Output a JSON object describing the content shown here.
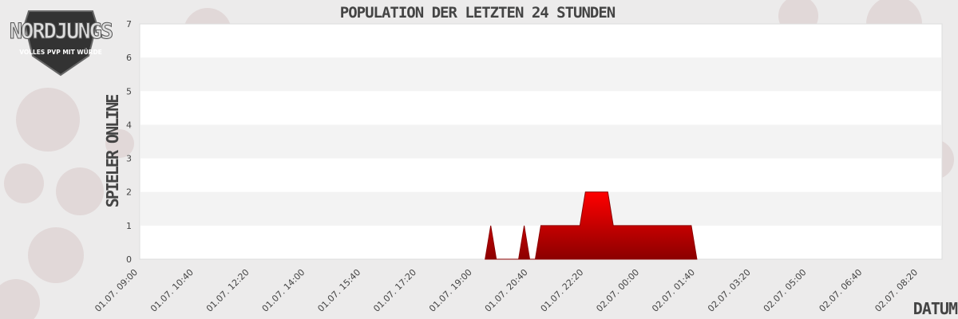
{
  "logo": {
    "text": "NORDJUNGS",
    "subtext": "VOLLES PVP MIT WÜRDE"
  },
  "chart_data": {
    "type": "area",
    "title": "POPULATION DER LETZTEN 24 STUNDEN",
    "xlabel": "DATUM",
    "ylabel": "SPIELER ONLINE",
    "xlim": [
      "01.07. 09:00",
      "02.07. 09:00"
    ],
    "ylim": [
      0,
      7
    ],
    "yticks": [
      0,
      1,
      2,
      3,
      4,
      5,
      6,
      7
    ],
    "xticks": [
      "01.07. 09:00",
      "01.07. 10:40",
      "01.07. 12:20",
      "01.07. 14:00",
      "01.07. 15:40",
      "01.07. 17:20",
      "01.07. 19:00",
      "01.07. 20:40",
      "01.07. 22:20",
      "02.07. 00:00",
      "02.07. 01:40",
      "02.07. 03:20",
      "02.07. 05:00",
      "02.07. 06:40",
      "02.07. 08:20"
    ],
    "grid": "alternating horizontal bands",
    "legend": "none",
    "colors": {
      "fill_top": "#ff0000",
      "fill_bottom": "#8b0000",
      "line": "#8b0000",
      "band": "#f3f3f3"
    },
    "points": [
      [
        "01.07. 19:20",
        0
      ],
      [
        "01.07. 19:30",
        1
      ],
      [
        "01.07. 19:40",
        0
      ],
      [
        "01.07. 20:20",
        0
      ],
      [
        "01.07. 20:30",
        1
      ],
      [
        "01.07. 20:40",
        0
      ],
      [
        "01.07. 20:50",
        0
      ],
      [
        "01.07. 21:00",
        1
      ],
      [
        "01.07. 22:10",
        1
      ],
      [
        "01.07. 22:20",
        2
      ],
      [
        "01.07. 23:00",
        2
      ],
      [
        "01.07. 23:10",
        1
      ],
      [
        "02.07. 01:30",
        1
      ],
      [
        "02.07. 01:40",
        0
      ]
    ]
  }
}
